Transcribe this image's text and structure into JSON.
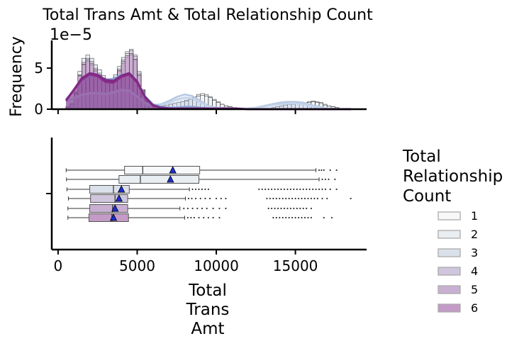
{
  "chart_data": {
    "type": "histogram+boxplot",
    "title": "Total Trans Amt & Total Relationship Count",
    "top_panel": {
      "ylabel": "Frequency",
      "y_offset_text": "1e−5",
      "ylim": [
        0,
        8.2
      ],
      "y_ticks": [
        0,
        5
      ],
      "y_tick_labels": [
        "0",
        "5"
      ],
      "xlim": [
        -400,
        19500
      ],
      "bins": {
        "start": 500,
        "width": 250,
        "values": {
          "1": [
            0.2,
            0.4,
            1.0,
            2.2,
            3.0,
            3.2,
            3.0,
            2.7,
            2.7,
            2.6,
            2.5,
            2.4,
            2.6,
            2.8,
            3.3,
            3.6,
            3.9,
            3.5,
            2.6,
            1.5,
            0.9,
            0.5,
            0.3,
            0.3,
            0.4,
            0.5,
            0.6,
            0.7,
            0.8,
            0.9,
            1.1,
            1.3,
            1.5,
            1.8,
            1.9,
            1.8,
            1.5,
            1.2,
            0.9,
            0.6,
            0.4,
            0.3,
            0.2,
            0.2,
            0.1,
            0.1,
            0.1,
            0.1,
            0.1,
            0.1,
            0.1,
            0.1,
            0.2,
            0.3,
            0.4,
            0.5,
            0.6,
            0.7,
            0.8,
            0.8,
            0.8,
            0.9,
            1.0,
            0.9,
            0.8,
            0.6,
            0.4,
            0.3,
            0.2,
            0.1,
            0.1,
            0.1,
            0.0
          ],
          "2": [
            0.2,
            0.4,
            1.2,
            2.6,
            3.8,
            4.3,
            4.2,
            3.6,
            3.3,
            3.0,
            2.8,
            2.8,
            3.1,
            3.6,
            4.3,
            4.9,
            5.3,
            5.0,
            3.6,
            2.0,
            1.1,
            0.6,
            0.3,
            0.3,
            0.4,
            0.5,
            0.6,
            0.7,
            0.8,
            0.9,
            1.0,
            1.2,
            1.4,
            1.6,
            1.7,
            1.6,
            1.4,
            1.1,
            0.8,
            0.6,
            0.4,
            0.3,
            0.2,
            0.2,
            0.1,
            0.1,
            0.1,
            0.1,
            0.1,
            0.1,
            0.1,
            0.1,
            0.2,
            0.3,
            0.4,
            0.5,
            0.6,
            0.6,
            0.7,
            0.7,
            0.7,
            0.8,
            0.9,
            0.8,
            0.7,
            0.5,
            0.4,
            0.3,
            0.2,
            0.1,
            0.1,
            0.1,
            0.0
          ],
          "3": [
            0.3,
            0.7,
            2.2,
            4.6,
            6.2,
            6.6,
            6.2,
            5.4,
            4.8,
            4.1,
            3.7,
            3.6,
            4.2,
            5.2,
            6.3,
            7.0,
            7.3,
            6.6,
            4.6,
            2.4,
            1.1,
            0.5,
            0.3,
            0.2,
            0.2,
            0.2,
            0.2,
            0.2,
            0.2,
            0.2,
            0.2,
            0.2,
            0.2,
            0.2,
            0.2,
            0.2,
            0.2,
            0.2,
            0.1,
            0.1,
            0.1,
            0.1,
            0.1,
            0.1,
            0.1,
            0.1,
            0.1,
            0.1,
            0.1,
            0.1,
            0.1,
            0.1,
            0.1,
            0.1,
            0.1,
            0.1,
            0.1,
            0.1,
            0.1,
            0.1,
            0.1,
            0.1,
            0.1,
            0.1,
            0.1,
            0.1,
            0.1,
            0.1,
            0.1,
            0.0,
            0.0,
            0.0,
            0.0
          ],
          "4": [
            0.3,
            0.6,
            2.0,
            4.2,
            5.7,
            6.2,
            5.8,
            5.0,
            4.4,
            3.8,
            3.4,
            3.3,
            3.9,
            4.9,
            6.0,
            6.8,
            7.1,
            6.4,
            4.4,
            2.3,
            1.0,
            0.4,
            0.2,
            0.1,
            0.1,
            0.1,
            0.1,
            0.1,
            0.1,
            0.1,
            0.1,
            0.1,
            0.1,
            0.1,
            0.1,
            0.1,
            0.1,
            0.1,
            0.1,
            0.1,
            0.1,
            0.1,
            0.1,
            0.1,
            0.1,
            0.1,
            0.1,
            0.1,
            0.1,
            0.1,
            0.1,
            0.1,
            0.1,
            0.1,
            0.1,
            0.1,
            0.1,
            0.1,
            0.1,
            0.1,
            0.1,
            0.1,
            0.1,
            0.1,
            0.1,
            0.1,
            0.1,
            0.1,
            0.1,
            0.0,
            0.0,
            0.0,
            0.0
          ],
          "5": [
            0.3,
            0.6,
            1.9,
            4.0,
            5.4,
            5.8,
            5.4,
            4.6,
            4.1,
            3.6,
            3.2,
            3.1,
            3.6,
            4.6,
            5.6,
            6.3,
            6.6,
            6.0,
            4.1,
            2.1,
            0.9,
            0.4,
            0.2,
            0.1,
            0.1,
            0.1,
            0.1,
            0.1,
            0.1,
            0.1,
            0.1,
            0.1,
            0.1,
            0.1,
            0.1,
            0.1,
            0.1,
            0.1,
            0.1,
            0.1,
            0.1,
            0.1,
            0.1,
            0.1,
            0.1,
            0.1,
            0.1,
            0.1,
            0.1,
            0.1,
            0.1,
            0.1,
            0.1,
            0.1,
            0.1,
            0.1,
            0.1,
            0.1,
            0.1,
            0.1,
            0.1,
            0.1,
            0.1,
            0.1,
            0.1,
            0.1,
            0.1,
            0.1,
            0.1,
            0.0,
            0.0,
            0.0,
            0.0
          ],
          "6": [
            0.3,
            0.6,
            1.9,
            4.1,
            5.5,
            6.0,
            5.6,
            4.8,
            4.2,
            3.7,
            3.3,
            3.2,
            3.7,
            4.7,
            5.8,
            6.5,
            6.8,
            6.1,
            4.2,
            2.2,
            0.9,
            0.4,
            0.2,
            0.1,
            0.1,
            0.1,
            0.1,
            0.1,
            0.1,
            0.1,
            0.1,
            0.1,
            0.1,
            0.1,
            0.1,
            0.1,
            0.1,
            0.1,
            0.1,
            0.1,
            0.1,
            0.1,
            0.1,
            0.1,
            0.1,
            0.1,
            0.1,
            0.1,
            0.1,
            0.1,
            0.1,
            0.1,
            0.1,
            0.1,
            0.1,
            0.1,
            0.1,
            0.1,
            0.1,
            0.1,
            0.1,
            0.1,
            0.1,
            0.1,
            0.1,
            0.1,
            0.1,
            0.1,
            0.1,
            0.0,
            0.0,
            0.0,
            0.0
          ]
        }
      },
      "kde": {
        "x": [
          500,
          1000,
          1500,
          2000,
          2500,
          3000,
          3500,
          4000,
          4500,
          5000,
          5500,
          6000,
          6500,
          7000,
          7500,
          8000,
          8500,
          9000,
          9500,
          10000,
          11000,
          12000,
          12500,
          13000,
          13500,
          14000,
          14500,
          15000,
          15500,
          16000,
          16500,
          17000,
          17500,
          18000,
          18500
        ],
        "series": {
          "1": [
            1.0,
            1.4,
            1.8,
            2.0,
            2.0,
            1.9,
            2.1,
            2.4,
            2.3,
            1.6,
            0.8,
            0.5,
            0.6,
            1.0,
            1.5,
            1.8,
            1.6,
            1.0,
            0.4,
            0.2,
            0.1,
            0.1,
            0.2,
            0.4,
            0.6,
            0.8,
            0.9,
            0.9,
            0.8,
            0.5,
            0.3,
            0.1,
            0.05,
            0.0,
            0.0
          ],
          "2": [
            0.9,
            1.3,
            1.7,
            1.9,
            1.9,
            1.8,
            2.0,
            2.3,
            2.2,
            1.5,
            0.7,
            0.4,
            0.5,
            0.8,
            1.2,
            1.4,
            1.3,
            0.8,
            0.3,
            0.2,
            0.1,
            0.1,
            0.2,
            0.3,
            0.5,
            0.6,
            0.7,
            0.7,
            0.6,
            0.4,
            0.2,
            0.1,
            0.05,
            0.0,
            0.0
          ],
          "3": [
            1.2,
            2.3,
            3.4,
            4.0,
            4.0,
            3.6,
            3.7,
            4.2,
            4.3,
            3.4,
            1.6,
            0.6,
            0.3,
            0.2,
            0.2,
            0.3,
            0.3,
            0.2,
            0.1,
            0.1,
            0.1,
            0.0,
            0.0,
            0.0,
            0.0,
            0.0,
            0.0,
            0.0,
            0.0,
            0.0,
            0.0,
            0.0,
            0.0,
            0.0,
            0.0
          ],
          "4": [
            1.1,
            2.4,
            3.8,
            4.4,
            4.2,
            3.6,
            3.5,
            4.1,
            4.4,
            3.4,
            1.5,
            0.5,
            0.2,
            0.1,
            0.1,
            0.1,
            0.1,
            0.1,
            0.1,
            0.1,
            0.1,
            0.0,
            0.0,
            0.0,
            0.0,
            0.0,
            0.0,
            0.0,
            0.0,
            0.0,
            0.0,
            0.0,
            0.0,
            0.0,
            0.0
          ],
          "5": [
            1.0,
            2.3,
            3.6,
            4.2,
            4.0,
            3.3,
            3.2,
            3.9,
            4.2,
            3.2,
            1.4,
            0.4,
            0.2,
            0.1,
            0.1,
            0.1,
            0.1,
            0.1,
            0.1,
            0.1,
            0.1,
            0.0,
            0.0,
            0.0,
            0.0,
            0.0,
            0.0,
            0.0,
            0.0,
            0.0,
            0.0,
            0.0,
            0.0,
            0.0,
            0.0
          ],
          "6": [
            1.1,
            2.4,
            3.8,
            4.4,
            4.2,
            3.5,
            3.4,
            4.1,
            4.4,
            3.4,
            1.5,
            0.5,
            0.2,
            0.1,
            0.1,
            0.1,
            0.1,
            0.1,
            0.1,
            0.1,
            0.1,
            0.0,
            0.0,
            0.0,
            0.0,
            0.0,
            0.0,
            0.0,
            0.0,
            0.0,
            0.0,
            0.0,
            0.0,
            0.0,
            0.0
          ]
        }
      }
    },
    "bottom_panel": {
      "xlabel": "Total\nTrans\nAmt",
      "xlim": [
        -400,
        19500
      ],
      "x_ticks": [
        0,
        5000,
        10000,
        15000
      ],
      "x_tick_labels": [
        "0",
        "5000",
        "10000",
        "15000"
      ],
      "boxes": [
        {
          "group": "1",
          "whislo": 510,
          "q1": 4200,
          "median": 5350,
          "q3": 8950,
          "whishi": 16300,
          "mean": 7250,
          "fliers": [
            16500,
            16650,
            16800,
            17200,
            17600
          ]
        },
        {
          "group": "2",
          "whislo": 530,
          "q1": 3850,
          "median": 5200,
          "q3": 8900,
          "whishi": 16500,
          "mean": 7100,
          "fliers": [
            16700,
            16900,
            17100,
            17500
          ]
        },
        {
          "group": "3",
          "whislo": 560,
          "q1": 2000,
          "median": 3500,
          "q3": 4500,
          "whishi": 8300,
          "mean": 4000,
          "fliers": [
            8500,
            8700,
            8900,
            9100,
            9300,
            9500,
            12700,
            12900,
            13100,
            13300,
            13500,
            13700,
            13900,
            14100,
            14300,
            14500,
            14700,
            14900,
            15100,
            15300,
            15500,
            15700,
            15900,
            16100,
            16300,
            16500,
            16700,
            16900,
            17200,
            17600
          ]
        },
        {
          "group": "4",
          "whislo": 650,
          "q1": 2050,
          "median": 3600,
          "q3": 4400,
          "whishi": 8050,
          "mean": 3850,
          "fliers": [
            8250,
            8450,
            8700,
            9000,
            9300,
            9600,
            10000,
            10300,
            10600,
            13200,
            13400,
            13600,
            13800,
            14000,
            14200,
            14400,
            14600,
            14800,
            15000,
            15200,
            15400,
            15600,
            15800,
            16000,
            16200,
            16400,
            16700,
            17000,
            18500
          ]
        },
        {
          "group": "5",
          "whislo": 620,
          "q1": 2000,
          "median": 3450,
          "q3": 4400,
          "whishi": 7700,
          "mean": 3600,
          "fliers": [
            7950,
            8200,
            8500,
            8800,
            9100,
            9400,
            9800,
            10200,
            10600,
            13300,
            13500,
            13700,
            13900,
            14100,
            14300,
            14500,
            14700,
            14900,
            15100,
            15300,
            15500,
            15700,
            16000
          ]
        },
        {
          "group": "6",
          "whislo": 620,
          "q1": 1950,
          "median": 3400,
          "q3": 4450,
          "whishi": 8000,
          "mean": 3500,
          "fliers": [
            8200,
            8400,
            8600,
            8900,
            9200,
            9500,
            9800,
            10200,
            13600,
            13800,
            14000,
            14200,
            14400,
            14600,
            14800,
            15000,
            15200,
            15400,
            15600,
            15800,
            16000,
            16800,
            17300
          ]
        }
      ]
    },
    "legend": {
      "title": "Total\nRelationship\nCount",
      "placement": "right",
      "entries": [
        "1",
        "2",
        "3",
        "4",
        "5",
        "6"
      ]
    },
    "colors": {
      "1": "#f7f8fa",
      "2": "#e9eef3",
      "3": "#dbe1ea",
      "4": "#cfc5dc",
      "5": "#c9b0d3",
      "6": "#c49bc6",
      "kde_1": "#b6c8e3",
      "kde_2": "#c3d3ea",
      "kde_3": "#8aa7d2",
      "kde_4": "#7f3f98",
      "kde_5": "#9a2a8c",
      "kde_6": "#7b2b85",
      "mean_marker": "#1b2ed1"
    }
  }
}
